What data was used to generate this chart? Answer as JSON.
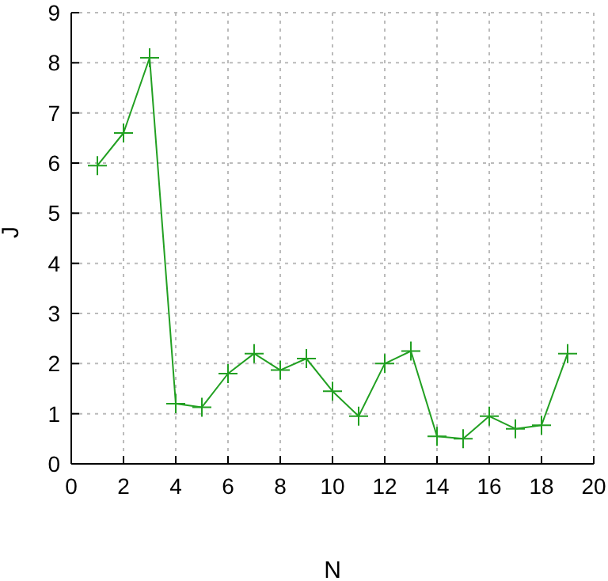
{
  "chart_data": {
    "type": "line",
    "xlabel": "N",
    "ylabel": "J",
    "x": [
      1,
      2,
      3,
      4,
      5,
      6,
      7,
      8,
      9,
      10,
      11,
      12,
      13,
      14,
      15,
      16,
      17,
      18,
      19
    ],
    "series": [
      {
        "color": "#22a022",
        "values": [
          5.95,
          6.6,
          8.1,
          1.2,
          1.13,
          1.8,
          2.2,
          1.87,
          2.1,
          1.45,
          0.95,
          2.0,
          2.25,
          0.55,
          0.5,
          0.95,
          0.7,
          0.77,
          2.2
        ]
      }
    ],
    "xlim": [
      0,
      20
    ],
    "xticks": [
      0,
      2,
      4,
      6,
      8,
      10,
      12,
      14,
      16,
      18,
      20
    ],
    "ylim": [
      0,
      9
    ],
    "yticks": [
      0,
      1,
      2,
      3,
      4,
      5,
      6,
      7,
      8,
      9
    ],
    "grid": true,
    "marker": "cross",
    "line_style": "solid"
  }
}
